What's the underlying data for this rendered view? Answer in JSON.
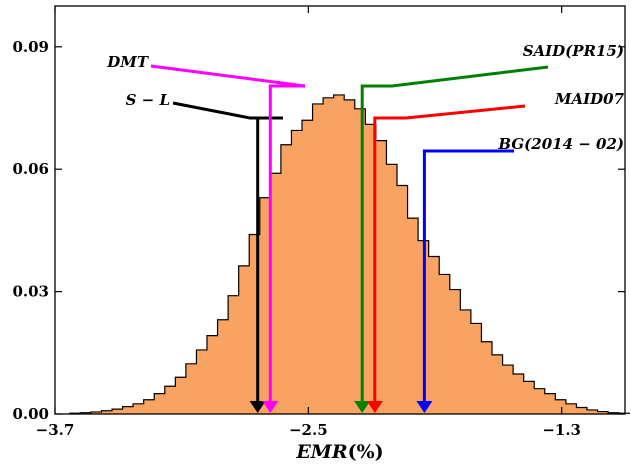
{
  "chart_data": {
    "type": "histogram",
    "xlabel_italic": "EMR",
    "xlabel_rest": "(%)",
    "ylabel": "",
    "title": "",
    "xlim": [
      -3.7,
      -1.3
    ],
    "ylim": [
      0,
      0.1
    ],
    "xticks": [
      {
        "value": -3.7,
        "label": "−3.7"
      },
      {
        "value": -2.5,
        "label": "−2.5"
      },
      {
        "value": -1.3,
        "label": "−1.3"
      }
    ],
    "yticks": [
      {
        "value": 0.0,
        "label": "0.00"
      },
      {
        "value": 0.03,
        "label": "0.03"
      },
      {
        "value": 0.06,
        "label": "0.06"
      },
      {
        "value": 0.09,
        "label": "0.09"
      }
    ],
    "bins": {
      "start": -3.63,
      "width": 0.05,
      "values": [
        0.0002,
        0.0003,
        0.0005,
        0.0008,
        0.0012,
        0.0018,
        0.0025,
        0.0035,
        0.005,
        0.0068,
        0.009,
        0.0123,
        0.0157,
        0.0192,
        0.0231,
        0.029,
        0.0363,
        0.044,
        0.053,
        0.059,
        0.066,
        0.0695,
        0.072,
        0.076,
        0.0775,
        0.0782,
        0.077,
        0.0748,
        0.071,
        0.067,
        0.0612,
        0.056,
        0.048,
        0.0425,
        0.0386,
        0.0342,
        0.0305,
        0.0255,
        0.0222,
        0.0177,
        0.0145,
        0.012,
        0.0098,
        0.008,
        0.0062,
        0.005,
        0.0035,
        0.0025,
        0.0016,
        0.001,
        0.0006,
        0.0003,
        0.0002
      ]
    },
    "fill_color": "#f9a363",
    "edge_color": "#000000",
    "annotations": [
      {
        "label": "S − L",
        "x": -2.74,
        "color": "#000000"
      },
      {
        "label": "DMT",
        "x": -2.68,
        "color": "#ff00ff"
      },
      {
        "label": "SAID(PR15)",
        "x": -2.245,
        "color": "#008000"
      },
      {
        "label": "MAID07",
        "x": -2.185,
        "color": "#ff0000"
      },
      {
        "label": "BG(2014 − 02)",
        "x": -1.95,
        "color": "#0000ff"
      }
    ]
  }
}
